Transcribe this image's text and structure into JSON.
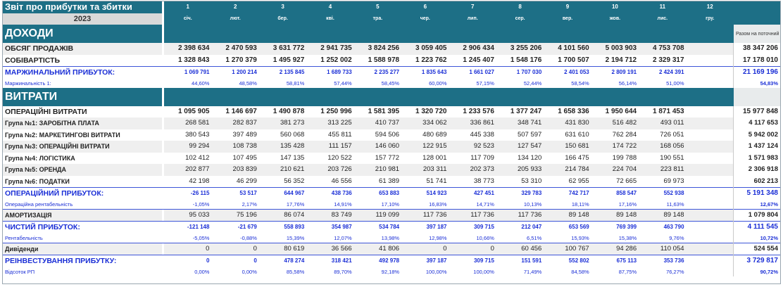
{
  "title": "Звіт про прибутки та збитки",
  "year": "2023",
  "months": [
    {
      "num": "1",
      "name": "січ."
    },
    {
      "num": "2",
      "name": "лют."
    },
    {
      "num": "3",
      "name": "бер."
    },
    {
      "num": "4",
      "name": "кві."
    },
    {
      "num": "5",
      "name": "тра."
    },
    {
      "num": "6",
      "name": "чер."
    },
    {
      "num": "7",
      "name": "лип."
    },
    {
      "num": "8",
      "name": "сер."
    },
    {
      "num": "9",
      "name": "вер."
    },
    {
      "num": "10",
      "name": "жов."
    },
    {
      "num": "11",
      "name": "лис."
    },
    {
      "num": "12",
      "name": "гру."
    }
  ],
  "total_header": "Разом на поточний рік",
  "sections": {
    "income": "ДОХОДИ",
    "expenses": "ВИТРАТИ"
  },
  "rows": {
    "sales": {
      "label": "ОБСЯГ ПРОДАЖІВ",
      "values": [
        "2 398 634",
        "2 470 593",
        "3 631 772",
        "2 941 735",
        "3 824 256",
        "3 059 405",
        "2 906 434",
        "3 255 206",
        "4 101 560",
        "5 003 903",
        "4 753 708",
        ""
      ],
      "total": "38 347 206"
    },
    "cost": {
      "label": "СОБІВАРТІСТЬ",
      "values": [
        "1 328 843",
        "1 270 379",
        "1 495 927",
        "1 252 002",
        "1 588 978",
        "1 223 762",
        "1 245 407",
        "1 548 176",
        "1 700 507",
        "2 194 712",
        "2 329 317",
        ""
      ],
      "total": "17 178 010"
    },
    "margin": {
      "label": "МАРЖИНАЛЬНИЙ ПРИБУТОК:",
      "values": [
        "1 069 791",
        "1 200 214",
        "2 135 845",
        "1 689 733",
        "2 235 277",
        "1 835 643",
        "1 661 027",
        "1 707 030",
        "2 401 053",
        "2 809 191",
        "2 424 391",
        ""
      ],
      "total": "21 169 196"
    },
    "margin_pct": {
      "label": "Маржинальність 1:",
      "values": [
        "44,60%",
        "48,58%",
        "58,81%",
        "57,44%",
        "58,45%",
        "60,00%",
        "57,15%",
        "52,44%",
        "58,54%",
        "56,14%",
        "51,00%",
        ""
      ],
      "total": "54,83%"
    },
    "opex": {
      "label": "ОПЕРАЦІЙНІ ВИТРАТИ",
      "values": [
        "1 095 905",
        "1 146 697",
        "1 490 878",
        "1 250 996",
        "1 581 395",
        "1 320 720",
        "1 233 576",
        "1 377 247",
        "1 658 336",
        "1 950 644",
        "1 871 453",
        ""
      ],
      "total": "15 977 848"
    },
    "g1": {
      "label": "Група №1: ЗАРОБІТНА ПЛАТА",
      "values": [
        "268 581",
        "282 837",
        "381 273",
        "313 225",
        "410 737",
        "334 062",
        "336 861",
        "348 741",
        "431 830",
        "516 482",
        "493 011",
        ""
      ],
      "total": "4 117 653"
    },
    "g2": {
      "label": "Група №2: МАРКЕТИНГОВІ ВИТРАТИ",
      "values": [
        "380 543",
        "397 489",
        "560 068",
        "455 811",
        "594 506",
        "480 689",
        "445 338",
        "507 597",
        "631 610",
        "762 284",
        "726 051",
        ""
      ],
      "total": "5 942 002"
    },
    "g3": {
      "label": "Група №3: ОПЕРАЦІЙНІ ВИТРАТИ",
      "values": [
        "99 294",
        "108 738",
        "135 428",
        "111 157",
        "146 060",
        "122 915",
        "92 523",
        "127 547",
        "150 681",
        "174 722",
        "168 056",
        ""
      ],
      "total": "1 437 124"
    },
    "g4": {
      "label": "Група №4: ЛОГІСТИКА",
      "values": [
        "102 412",
        "107 495",
        "147 135",
        "120 522",
        "157 772",
        "128 001",
        "117 709",
        "134 120",
        "166 475",
        "199 788",
        "190 551",
        ""
      ],
      "total": "1 571 983"
    },
    "g5": {
      "label": "Група №5: ОРЕНДА",
      "values": [
        "202 877",
        "203 839",
        "210 621",
        "203 726",
        "210 981",
        "203 311",
        "202 373",
        "205 933",
        "214 784",
        "224 704",
        "223 811",
        ""
      ],
      "total": "2 306 918"
    },
    "g6": {
      "label": "Група №6: ПОДАТКИ",
      "values": [
        "42 198",
        "46 299",
        "56 352",
        "46 556",
        "61 389",
        "51 741",
        "38 773",
        "53 310",
        "62 955",
        "72 665",
        "69 973",
        ""
      ],
      "total": "602 213"
    },
    "op_profit": {
      "label": "ОПЕРАЦІЙНИЙ ПРИБУТОК:",
      "values": [
        "-26 115",
        "53 517",
        "644 967",
        "438 736",
        "653 883",
        "514 923",
        "427 451",
        "329 783",
        "742 717",
        "858 547",
        "552 938",
        ""
      ],
      "total": "5 191 348"
    },
    "op_pct": {
      "label": "Операційна рентабельність",
      "values": [
        "-1,05%",
        "2,17%",
        "17,76%",
        "14,91%",
        "17,10%",
        "16,83%",
        "14,71%",
        "10,13%",
        "18,11%",
        "17,16%",
        "11,63%",
        ""
      ],
      "total": "12,67%"
    },
    "amort": {
      "label": "АМОРТИЗАЦІЯ",
      "values": [
        "95 033",
        "75 196",
        "86 074",
        "83 749",
        "119 099",
        "117 736",
        "117 736",
        "117 736",
        "89 148",
        "89 148",
        "89 148",
        ""
      ],
      "total": "1 079 804"
    },
    "net": {
      "label": "ЧИСТИЙ ПРИБУТОК:",
      "values": [
        "-121 148",
        "-21 679",
        "558 893",
        "354 987",
        "534 784",
        "397 187",
        "309 715",
        "212 047",
        "653 569",
        "769 399",
        "463 790",
        ""
      ],
      "total": "4 111 545"
    },
    "net_pct": {
      "label": "Рентабельність",
      "values": [
        "-5,05%",
        "-0,88%",
        "15,39%",
        "12,07%",
        "13,98%",
        "12,98%",
        "10,66%",
        "6,51%",
        "15,93%",
        "15,38%",
        "9,76%",
        ""
      ],
      "total": "10,72%"
    },
    "div": {
      "label": "Дивіденди",
      "values": [
        "0",
        "0",
        "80 619",
        "36 566",
        "41 806",
        "0",
        "0",
        "60 456",
        "100 767",
        "94 286",
        "110 054",
        ""
      ],
      "total": "524 554"
    },
    "reinv": {
      "label": "РЕІНВЕСТУВАННЯ ПРИБУТКУ:",
      "values": [
        "0",
        "0",
        "478 274",
        "318 421",
        "492 978",
        "397 187",
        "309 715",
        "151 591",
        "552 802",
        "675 113",
        "353 736",
        ""
      ],
      "total": "3 729 817"
    },
    "reinv_pct": {
      "label": "Відсоток РП",
      "values": [
        "0,00%",
        "0,00%",
        "85,58%",
        "89,70%",
        "92,18%",
        "100,00%",
        "100,00%",
        "71,49%",
        "84,58%",
        "87,75%",
        "76,27%",
        ""
      ],
      "total": "90,72%"
    }
  }
}
